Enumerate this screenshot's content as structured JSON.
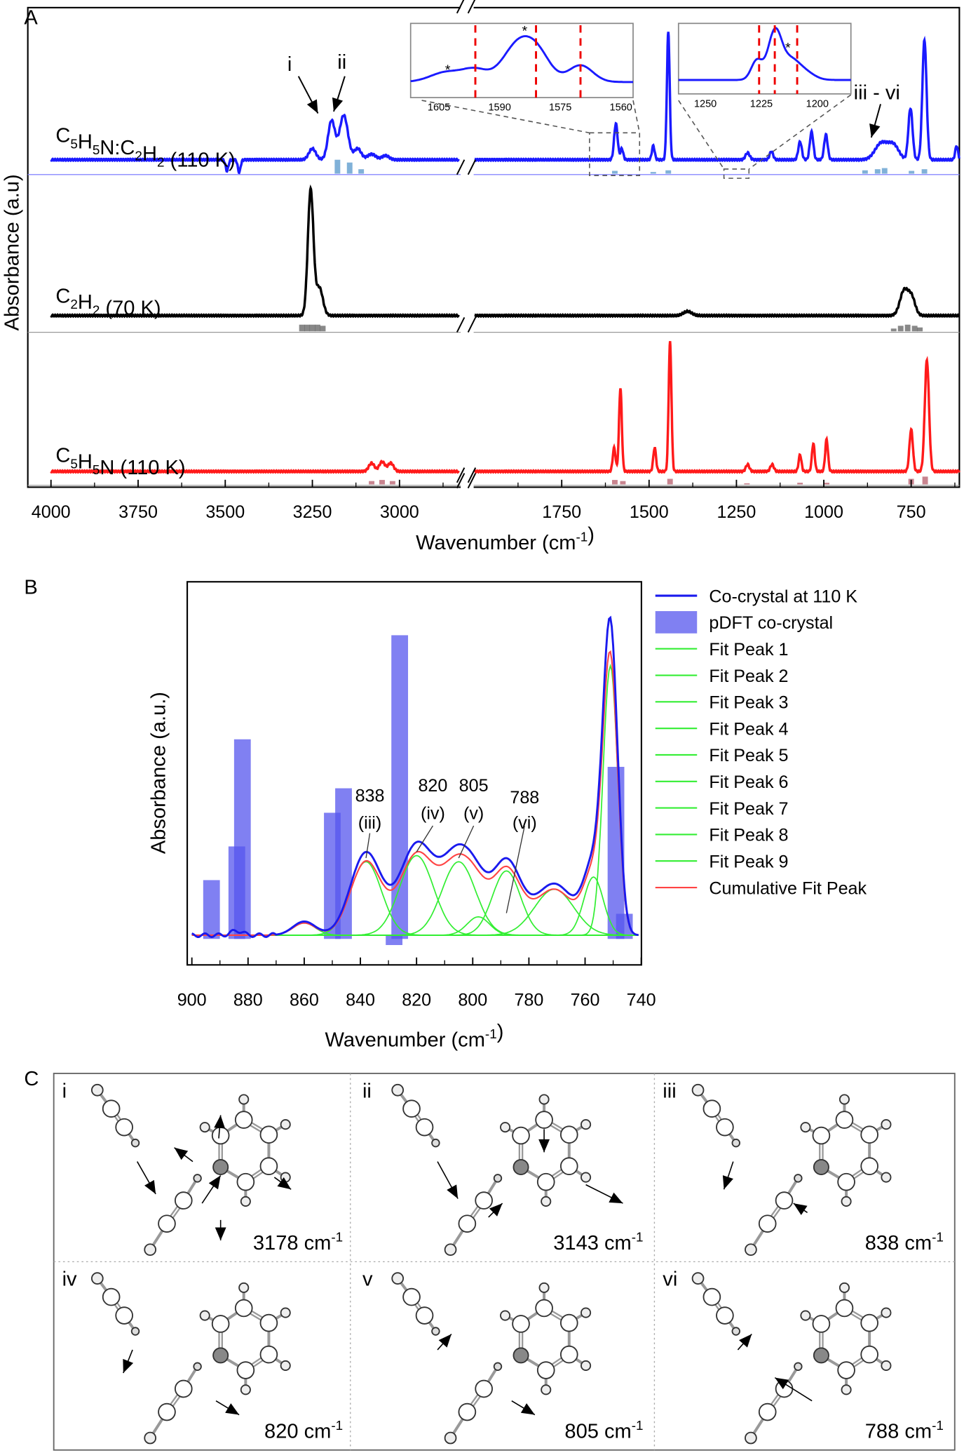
{
  "chart_data": [
    {
      "panel": "A",
      "type": "line",
      "xlabel": "Wavenumber (cm-1)",
      "ylabel": "Absorbance (a.u)",
      "x_ticks": [
        "4000",
        "3750",
        "3500",
        "3250",
        "3000",
        "1750",
        "1500",
        "1250",
        "1000",
        "750"
      ],
      "x_axis_break": [
        2830,
        2000
      ],
      "xlim": [
        4000,
        612
      ],
      "series": [
        {
          "name": "C5H5N:C2H2 (110 K)",
          "color": "#1a1aff",
          "peaks": [
            [
              3250,
              0.08,
              10
            ],
            [
              3195,
              0.28,
              10
            ],
            [
              3160,
              0.32,
              12
            ],
            [
              3120,
              0.08,
              10
            ],
            [
              3080,
              0.04,
              12
            ],
            [
              3040,
              0.03,
              10
            ],
            [
              1595,
              0.26,
              5
            ],
            [
              1578,
              0.08,
              4
            ],
            [
              1488,
              0.1,
              4
            ],
            [
              1445,
              0.92,
              4
            ],
            [
              1218,
              0.05,
              6
            ],
            [
              1150,
              0.06,
              5
            ],
            [
              1068,
              0.13,
              5
            ],
            [
              1035,
              0.2,
              5
            ],
            [
              994,
              0.18,
              5
            ],
            [
              835,
              0.12,
              18
            ],
            [
              800,
              0.1,
              15
            ],
            [
              752,
              0.37,
              6
            ],
            [
              712,
              0.86,
              6
            ],
            [
              620,
              0.1,
              4
            ]
          ],
          "dips": [
            [
              3495,
              0.08,
              4
            ],
            [
              3460,
              0.09,
              4
            ]
          ],
          "pdft_bars": [
            [
              3178,
              0.25
            ],
            [
              3143,
              0.2
            ],
            [
              3110,
              0.08
            ],
            [
              1598,
              0.05
            ],
            [
              1488,
              0.03
            ],
            [
              1445,
              0.06
            ],
            [
              882,
              0.06
            ],
            [
              846,
              0.08
            ],
            [
              826,
              0.1
            ],
            [
              749,
              0.05
            ],
            [
              712,
              0.08
            ]
          ]
        },
        {
          "name": "C2H2 (70 K)",
          "color": "#000000",
          "peaks": [
            [
              3255,
              0.9,
              8
            ],
            [
              3230,
              0.2,
              10
            ],
            [
              1390,
              0.03,
              12
            ],
            [
              770,
              0.18,
              12
            ],
            [
              748,
              0.12,
              10
            ]
          ],
          "dips": [],
          "pdft_bars": [
            [
              3280,
              0.12
            ],
            [
              3265,
              0.12
            ],
            [
              3250,
              0.12
            ],
            [
              3235,
              0.12
            ],
            [
              3220,
              0.1
            ],
            [
              800,
              0.05
            ],
            [
              780,
              0.1
            ],
            [
              760,
              0.12
            ],
            [
              740,
              0.1
            ],
            [
              725,
              0.07
            ]
          ]
        },
        {
          "name": "C5H5N (110 K)",
          "color": "#ff1a1a",
          "peaks": [
            [
              3080,
              0.06,
              8
            ],
            [
              3050,
              0.07,
              8
            ],
            [
              3025,
              0.06,
              8
            ],
            [
              1600,
              0.17,
              4
            ],
            [
              1582,
              0.6,
              4
            ],
            [
              1484,
              0.17,
              4
            ],
            [
              1440,
              0.93,
              4
            ],
            [
              1218,
              0.05,
              5
            ],
            [
              1148,
              0.05,
              5
            ],
            [
              1068,
              0.12,
              4
            ],
            [
              1030,
              0.2,
              4
            ],
            [
              992,
              0.23,
              4
            ],
            [
              750,
              0.3,
              5
            ],
            [
              705,
              0.8,
              6
            ],
            [
              603,
              0.15,
              4
            ]
          ],
          "dips": [],
          "pdft_bars": [
            [
              3080,
              0.06
            ],
            [
              3050,
              0.08
            ],
            [
              3020,
              0.06
            ],
            [
              1598,
              0.08
            ],
            [
              1575,
              0.06
            ],
            [
              1440,
              0.1
            ],
            [
              1220,
              0.02
            ],
            [
              1068,
              0.03
            ],
            [
              992,
              0.03
            ],
            [
              750,
              0.1
            ],
            [
              710,
              0.14
            ]
          ]
        }
      ],
      "annotations": [
        "i",
        "ii",
        "iii - vi"
      ],
      "insets": [
        {
          "x_ticks": [
            "1605",
            "1590",
            "1575",
            "1560"
          ],
          "dashed_lines": [
            1596,
            1581,
            1570
          ],
          "stars": 2
        },
        {
          "x_ticks": [
            "1250",
            "1225",
            "1200"
          ],
          "dashed_lines": [
            1226,
            1219,
            1209
          ],
          "stars": 1
        }
      ]
    },
    {
      "panel": "B",
      "type": "line",
      "xlabel": "Wavenumber (cm-1)",
      "ylabel": "Absorbance (a.u.)",
      "xlim": [
        900,
        740
      ],
      "x_ticks": [
        "900",
        "880",
        "860",
        "840",
        "820",
        "800",
        "780",
        "760",
        "740"
      ],
      "legend_position": "right-outside",
      "legend": [
        "Co-crystal at 110 K",
        "pDFT co-crystal",
        "Fit Peak 1",
        "Fit Peak 2",
        "Fit Peak 3",
        "Fit Peak 4",
        "Fit Peak 5",
        "Fit Peak 6",
        "Fit Peak 7",
        "Fit Peak 8",
        "Fit Peak 9",
        "Cumulative Fit Peak"
      ],
      "colors": {
        "cocrystal": "#1a1aee",
        "pdft": "#5555ee",
        "fit": "#33ee33",
        "cumulative": "#ff4444"
      },
      "fit_peaks": [
        [
          860,
          0.04,
          4
        ],
        [
          838,
          0.24,
          5.5
        ],
        [
          820,
          0.26,
          6
        ],
        [
          805,
          0.24,
          6
        ],
        [
          798,
          0.06,
          4
        ],
        [
          788,
          0.21,
          5
        ],
        [
          771,
          0.15,
          7
        ],
        [
          757,
          0.19,
          3.5
        ],
        [
          751,
          0.88,
          2.6
        ]
      ],
      "cocrystal_scale": 1.12,
      "pdft_bars": [
        [
          893,
          0.18
        ],
        [
          884,
          0.29
        ],
        [
          882,
          0.64
        ],
        [
          850,
          0.4
        ],
        [
          846,
          0.48
        ],
        [
          826,
          0.98
        ],
        [
          828,
          -0.02
        ],
        [
          749,
          0.55
        ],
        [
          746,
          0.07
        ]
      ],
      "peak_labels": [
        {
          "value": "838",
          "mode": "(iii)",
          "x": 838
        },
        {
          "value": "820",
          "mode": "(iv)",
          "x": 820
        },
        {
          "value": "805",
          "mode": "(v)",
          "x": 805
        },
        {
          "value": "788",
          "mode": "(vi)",
          "x": 788
        }
      ]
    }
  ],
  "panel_labels": [
    "A",
    "B",
    "C"
  ],
  "panel_c": {
    "cells": [
      {
        "mode": "i",
        "freq": "3178 cm-1"
      },
      {
        "mode": "ii",
        "freq": "3143 cm-1"
      },
      {
        "mode": "iii",
        "freq": "838 cm-1"
      },
      {
        "mode": "iv",
        "freq": "820 cm-1"
      },
      {
        "mode": "v",
        "freq": "805 cm-1"
      },
      {
        "mode": "vi",
        "freq": "788 cm-1"
      }
    ]
  }
}
